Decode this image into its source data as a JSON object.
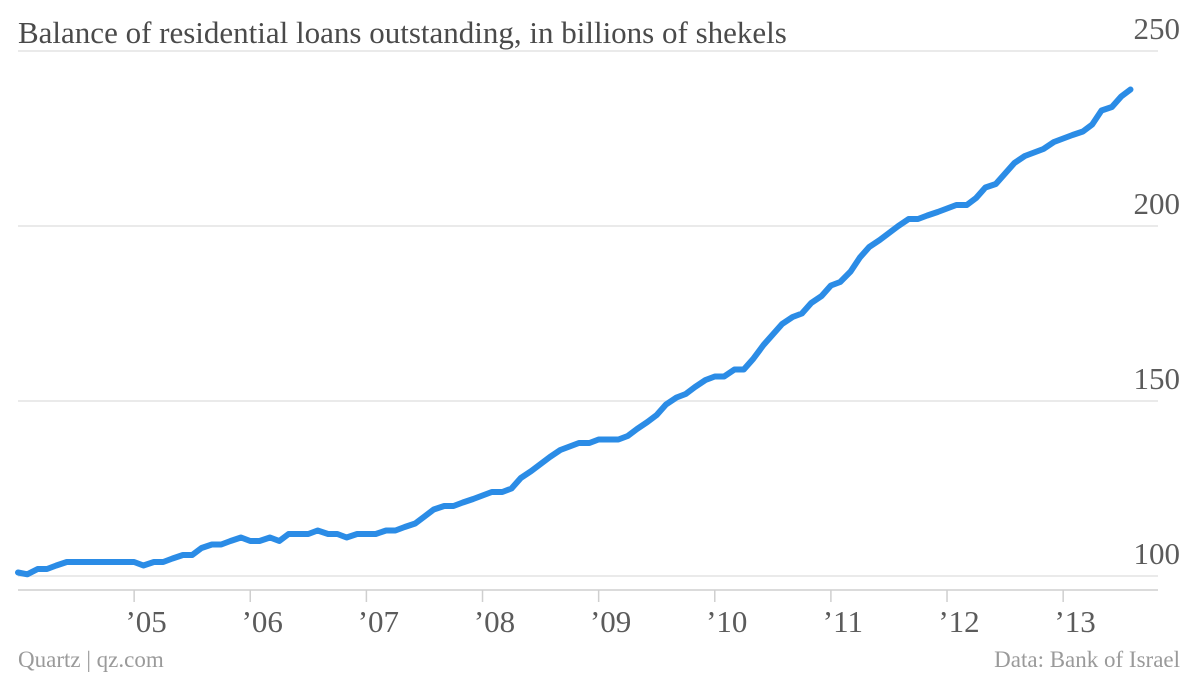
{
  "title": "Balance of residential loans outstanding, in billions of shekels",
  "source": "Data: Bank of Israel",
  "credit": "Quartz | qz.com",
  "colors": {
    "series": "#2b8ce6"
  },
  "chart_data": {
    "type": "line",
    "title": "Balance of residential loans outstanding, in billions of shekels",
    "xlabel": "",
    "ylabel": "",
    "ylim": [
      100,
      250
    ],
    "yticks": [
      {
        "value": 100,
        "label": "100"
      },
      {
        "value": 150,
        "label": "150"
      },
      {
        "value": 200,
        "label": "200"
      },
      {
        "value": 250,
        "label": "250"
      }
    ],
    "xlim": [
      2004.0,
      2013.92
    ],
    "xticks": [
      {
        "value": 2005,
        "label": "’05"
      },
      {
        "value": 2006,
        "label": "’06"
      },
      {
        "value": 2007,
        "label": "’07"
      },
      {
        "value": 2008,
        "label": "’08"
      },
      {
        "value": 2009,
        "label": "’09"
      },
      {
        "value": 2010,
        "label": "’10"
      },
      {
        "value": 2011,
        "label": "’11"
      },
      {
        "value": 2012,
        "label": "’12"
      },
      {
        "value": 2013,
        "label": "’13"
      }
    ],
    "grid": true,
    "legend": "none",
    "series": [
      {
        "x": [
          2004.0,
          2004.08,
          2004.17,
          2004.25,
          2004.33,
          2004.42,
          2004.5,
          2004.58,
          2004.67,
          2004.75,
          2004.83,
          2004.92,
          2005.0,
          2005.08,
          2005.17,
          2005.25,
          2005.33,
          2005.42,
          2005.5,
          2005.58,
          2005.67,
          2005.75,
          2005.83,
          2005.92,
          2006.0,
          2006.08,
          2006.17,
          2006.25,
          2006.33,
          2006.42,
          2006.5,
          2006.58,
          2006.67,
          2006.75,
          2006.83,
          2006.92,
          2007.0,
          2007.08,
          2007.17,
          2007.25,
          2007.33,
          2007.42,
          2007.5,
          2007.58,
          2007.67,
          2007.75,
          2007.83,
          2007.92,
          2008.0,
          2008.08,
          2008.17,
          2008.25,
          2008.33,
          2008.42,
          2008.5,
          2008.58,
          2008.67,
          2008.75,
          2008.83,
          2008.92,
          2009.0,
          2009.08,
          2009.17,
          2009.25,
          2009.33,
          2009.42,
          2009.5,
          2009.58,
          2009.67,
          2009.75,
          2009.83,
          2009.92,
          2010.0,
          2010.08,
          2010.17,
          2010.25,
          2010.33,
          2010.42,
          2010.5,
          2010.58,
          2010.67,
          2010.75,
          2010.83,
          2010.92,
          2011.0,
          2011.08,
          2011.17,
          2011.25,
          2011.33,
          2011.42,
          2011.5,
          2011.58,
          2011.67,
          2011.75,
          2011.83,
          2011.92,
          2012.0,
          2012.08,
          2012.17,
          2012.25,
          2012.33,
          2012.42,
          2012.5,
          2012.58,
          2012.67,
          2012.75,
          2012.83,
          2012.92,
          2013.0,
          2013.08,
          2013.17,
          2013.25,
          2013.33,
          2013.42,
          2013.5,
          2013.58
        ],
        "values": [
          101.0,
          100.5,
          102.0,
          102.0,
          103.0,
          104.0,
          104.0,
          104.0,
          104.0,
          104.0,
          104.0,
          104.0,
          104.0,
          103.0,
          104.0,
          104.0,
          105.0,
          106.0,
          106.0,
          108.0,
          109.0,
          109.0,
          110.0,
          111.0,
          110.0,
          110.0,
          111.0,
          110.0,
          112.0,
          112.0,
          112.0,
          113.0,
          112.0,
          112.0,
          111.0,
          112.0,
          112.0,
          112.0,
          113.0,
          113.0,
          114.0,
          115.0,
          117.0,
          119.0,
          120.0,
          120.0,
          121.0,
          122.0,
          123.0,
          124.0,
          124.0,
          125.0,
          128.0,
          130.0,
          132.0,
          134.0,
          136.0,
          137.0,
          138.0,
          138.0,
          139.0,
          139.0,
          139.0,
          140.0,
          142.0,
          144.0,
          146.0,
          149.0,
          151.0,
          152.0,
          154.0,
          156.0,
          157.0,
          157.0,
          159.0,
          159.0,
          162.0,
          166.0,
          169.0,
          172.0,
          174.0,
          175.0,
          178.0,
          180.0,
          183.0,
          184.0,
          187.0,
          191.0,
          194.0,
          196.0,
          198.0,
          200.0,
          202.0,
          202.0,
          203.0,
          204.0,
          205.0,
          206.0,
          206.0,
          208.0,
          211.0,
          212.0,
          215.0,
          218.0,
          220.0,
          221.0,
          222.0,
          224.0,
          225.0,
          226.0,
          227.0,
          229.0,
          233.0,
          234.0,
          237.0,
          239.0
        ]
      }
    ]
  }
}
